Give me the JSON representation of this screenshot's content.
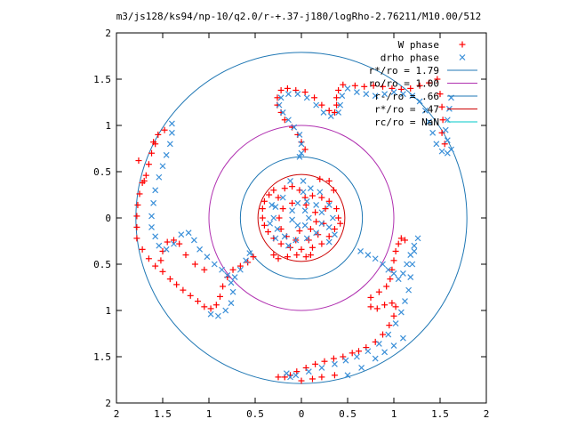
{
  "chart_data": {
    "type": "scatter",
    "title": "m3/js128/ks94/np-10/q2.0/r-+.37-j180/logRho-2.76211/M10.00/512",
    "xlabel": "",
    "ylabel": "",
    "xlim": [
      -2,
      2
    ],
    "ylim": [
      -2,
      2
    ],
    "x_ticks": [
      "2",
      "1.5",
      "1",
      "0.5",
      "0",
      "0.5",
      "1",
      "1.5",
      "2"
    ],
    "y_ticks": [
      "2",
      "1.5",
      "1",
      "0.5",
      "0",
      "0.5",
      "1",
      "1.5",
      "2"
    ],
    "grid": false,
    "legend_placement": "top-right",
    "circles": [
      {
        "name": "r*/ro = 1.79",
        "radius": 1.79,
        "color": "#1f77b4"
      },
      {
        "name": "ro/ro = 1.00",
        "radius": 1.0,
        "color": "#b030b0"
      },
      {
        "name": "r-/ro = .66",
        "radius": 0.66,
        "color": "#1f77b4"
      },
      {
        "name": "r*/ro = .47",
        "radius": 0.47,
        "color": "#cc0000"
      },
      {
        "name": "rc/ro = NaN",
        "radius": null,
        "color": "#00c8c8"
      }
    ],
    "series": [
      {
        "name": "W phase",
        "marker": "+",
        "color": "#ff0000",
        "points": [
          [
            1.47,
            1.5
          ],
          [
            1.38,
            1.46
          ],
          [
            1.28,
            1.43
          ],
          [
            1.18,
            1.4
          ],
          [
            1.08,
            1.39
          ],
          [
            0.98,
            1.4
          ],
          [
            0.88,
            1.42
          ],
          [
            0.78,
            1.43
          ],
          [
            0.68,
            1.42
          ],
          [
            0.58,
            1.43
          ],
          [
            0.45,
            1.44
          ],
          [
            0.4,
            1.38
          ],
          [
            0.38,
            1.3
          ],
          [
            0.38,
            1.22
          ],
          [
            0.36,
            1.14
          ],
          [
            0.3,
            1.16
          ],
          [
            0.22,
            1.22
          ],
          [
            0.14,
            1.3
          ],
          [
            0.04,
            1.36
          ],
          [
            -0.06,
            1.38
          ],
          [
            -0.15,
            1.4
          ],
          [
            -0.22,
            1.38
          ],
          [
            -0.26,
            1.3
          ],
          [
            -0.26,
            1.22
          ],
          [
            -0.22,
            1.14
          ],
          [
            -0.18,
            1.06
          ],
          [
            -0.1,
            0.98
          ],
          [
            -0.04,
            0.9
          ],
          [
            0.0,
            0.82
          ],
          [
            0.04,
            0.74
          ],
          [
            1.5,
            1.34
          ],
          [
            1.52,
            1.2
          ],
          [
            1.53,
            1.06
          ],
          [
            1.52,
            0.92
          ],
          [
            1.55,
            0.8
          ],
          [
            -1.55,
            0.9
          ],
          [
            -1.58,
            0.8
          ],
          [
            -1.62,
            0.7
          ],
          [
            -1.65,
            0.58
          ],
          [
            -1.68,
            0.46
          ],
          [
            -1.72,
            0.38
          ],
          [
            -1.75,
            0.26
          ],
          [
            -1.77,
            0.14
          ],
          [
            -1.78,
            0.02
          ],
          [
            -1.78,
            -0.1
          ],
          [
            -1.78,
            -0.22
          ],
          [
            -1.72,
            -0.34
          ],
          [
            -1.65,
            -0.44
          ],
          [
            -1.58,
            -0.52
          ],
          [
            -1.5,
            -0.58
          ],
          [
            -1.42,
            -0.66
          ],
          [
            -1.35,
            -0.72
          ],
          [
            -1.28,
            -0.78
          ],
          [
            -1.2,
            -0.84
          ],
          [
            -1.12,
            -0.9
          ],
          [
            -1.05,
            -0.96
          ],
          [
            -0.98,
            -0.98
          ],
          [
            -0.92,
            -0.94
          ],
          [
            -0.88,
            -0.85
          ],
          [
            -0.85,
            -0.74
          ],
          [
            -0.8,
            -0.64
          ],
          [
            -0.74,
            -0.56
          ],
          [
            -0.66,
            -0.52
          ],
          [
            -0.58,
            -0.48
          ],
          [
            -0.52,
            -0.42
          ],
          [
            -1.05,
            -0.56
          ],
          [
            -1.15,
            -0.5
          ],
          [
            -1.25,
            -0.4
          ],
          [
            -1.32,
            -0.28
          ],
          [
            -1.38,
            -0.24
          ],
          [
            -1.45,
            -0.26
          ],
          [
            -1.5,
            -0.36
          ],
          [
            -1.52,
            -0.46
          ],
          [
            -1.76,
            0.62
          ],
          [
            -1.6,
            0.82
          ],
          [
            -1.48,
            0.95
          ],
          [
            -1.7,
            0.4
          ],
          [
            0.62,
            -1.44
          ],
          [
            0.55,
            -1.46
          ],
          [
            0.45,
            -1.5
          ],
          [
            0.35,
            -1.52
          ],
          [
            0.25,
            -1.55
          ],
          [
            0.15,
            -1.58
          ],
          [
            0.05,
            -1.62
          ],
          [
            -0.05,
            -1.66
          ],
          [
            -0.12,
            -1.7
          ],
          [
            -0.18,
            -1.72
          ],
          [
            0.7,
            -1.4
          ],
          [
            0.8,
            -1.34
          ],
          [
            0.88,
            -1.26
          ],
          [
            0.95,
            -1.16
          ],
          [
            1.0,
            -1.06
          ],
          [
            1.02,
            -0.96
          ],
          [
            0.98,
            -0.92
          ],
          [
            0.9,
            -0.94
          ],
          [
            0.82,
            -0.98
          ],
          [
            0.75,
            -0.96
          ],
          [
            0.75,
            -0.86
          ],
          [
            0.84,
            -0.8
          ],
          [
            0.92,
            -0.74
          ],
          [
            0.96,
            -0.66
          ],
          [
            0.98,
            -0.56
          ],
          [
            1.0,
            -0.46
          ],
          [
            1.02,
            -0.36
          ],
          [
            1.05,
            -0.28
          ],
          [
            1.08,
            -0.22
          ],
          [
            1.12,
            -0.24
          ],
          [
            0.0,
            -1.76
          ],
          [
            0.12,
            -1.74
          ],
          [
            0.22,
            -1.72
          ],
          [
            0.36,
            -1.7
          ],
          [
            -0.25,
            -1.72
          ],
          [
            -0.3,
            0.3
          ],
          [
            -0.25,
            0.22
          ],
          [
            -0.35,
            0.25
          ],
          [
            -0.4,
            0.18
          ],
          [
            -0.42,
            0.1
          ],
          [
            -0.42,
            0.0
          ],
          [
            -0.4,
            -0.08
          ],
          [
            -0.36,
            -0.15
          ],
          [
            -0.3,
            -0.22
          ],
          [
            -0.22,
            -0.28
          ],
          [
            -0.12,
            -0.32
          ],
          [
            0.0,
            -0.34
          ],
          [
            0.12,
            -0.32
          ],
          [
            0.22,
            -0.28
          ],
          [
            0.3,
            -0.2
          ],
          [
            0.36,
            -0.12
          ],
          [
            0.4,
            0.0
          ],
          [
            0.38,
            0.1
          ],
          [
            0.3,
            0.18
          ],
          [
            0.22,
            0.22
          ],
          [
            0.12,
            0.24
          ],
          [
            0.04,
            0.22
          ],
          [
            -0.02,
            0.3
          ],
          [
            -0.1,
            0.34
          ],
          [
            -0.18,
            0.32
          ],
          [
            0.26,
            0.1
          ],
          [
            0.24,
            -0.06
          ],
          [
            0.18,
            -0.18
          ],
          [
            0.08,
            -0.24
          ],
          [
            -0.06,
            -0.24
          ],
          [
            -0.16,
            -0.2
          ],
          [
            -0.22,
            -0.12
          ],
          [
            -0.24,
            0.0
          ],
          [
            -0.2,
            0.1
          ],
          [
            -0.1,
            0.16
          ],
          [
            0.05,
            0.14
          ],
          [
            0.15,
            0.06
          ],
          [
            0.16,
            -0.04
          ],
          [
            0.1,
            -0.12
          ],
          [
            -0.02,
            -0.14
          ],
          [
            -0.3,
            -0.4
          ],
          [
            -0.25,
            -0.44
          ],
          [
            -0.15,
            -0.42
          ],
          [
            -0.05,
            -0.4
          ],
          [
            0.05,
            -0.42
          ],
          [
            0.1,
            -0.4
          ],
          [
            0.3,
            0.4
          ],
          [
            0.2,
            0.42
          ],
          [
            0.35,
            0.3
          ],
          [
            0.42,
            -0.06
          ]
        ]
      },
      {
        "name": "drho phase",
        "marker": "x",
        "color": "#3a8fd8",
        "points": [
          [
            1.62,
            1.3
          ],
          [
            1.6,
            1.18
          ],
          [
            1.58,
            1.06
          ],
          [
            1.56,
            0.95
          ],
          [
            1.58,
            0.84
          ],
          [
            1.62,
            0.74
          ],
          [
            1.58,
            0.7
          ],
          [
            1.52,
            0.72
          ],
          [
            1.46,
            0.8
          ],
          [
            1.42,
            0.92
          ],
          [
            1.38,
            1.04
          ],
          [
            1.34,
            1.16
          ],
          [
            1.28,
            1.26
          ],
          [
            1.2,
            1.32
          ],
          [
            1.1,
            1.34
          ],
          [
            1.0,
            1.36
          ],
          [
            0.9,
            1.34
          ],
          [
            0.8,
            1.32
          ],
          [
            0.7,
            1.34
          ],
          [
            0.6,
            1.36
          ],
          [
            0.5,
            1.4
          ],
          [
            0.44,
            1.32
          ],
          [
            0.42,
            1.22
          ],
          [
            0.4,
            1.14
          ],
          [
            0.32,
            1.1
          ],
          [
            0.24,
            1.14
          ],
          [
            0.16,
            1.22
          ],
          [
            0.06,
            1.3
          ],
          [
            -0.04,
            1.34
          ],
          [
            -0.14,
            1.34
          ],
          [
            -0.22,
            1.3
          ],
          [
            -0.24,
            1.22
          ],
          [
            -0.2,
            1.14
          ],
          [
            -0.14,
            1.06
          ],
          [
            -0.08,
            0.98
          ],
          [
            -0.02,
            0.9
          ],
          [
            0.0,
            0.8
          ],
          [
            0.0,
            0.7
          ],
          [
            -0.02,
            0.66
          ],
          [
            -1.4,
            1.02
          ],
          [
            -1.4,
            0.92
          ],
          [
            -1.42,
            0.8
          ],
          [
            -1.46,
            0.68
          ],
          [
            -1.5,
            0.56
          ],
          [
            -1.54,
            0.44
          ],
          [
            -1.58,
            0.3
          ],
          [
            -1.6,
            0.16
          ],
          [
            -1.62,
            0.02
          ],
          [
            -1.62,
            -0.1
          ],
          [
            -1.58,
            -0.2
          ],
          [
            -1.54,
            -0.3
          ],
          [
            -1.46,
            -0.34
          ],
          [
            -1.38,
            -0.28
          ],
          [
            -1.3,
            -0.18
          ],
          [
            -1.22,
            -0.16
          ],
          [
            -1.16,
            -0.24
          ],
          [
            -1.1,
            -0.34
          ],
          [
            -1.02,
            -0.42
          ],
          [
            -0.94,
            -0.5
          ],
          [
            -0.86,
            -0.56
          ],
          [
            -0.8,
            -0.62
          ],
          [
            -0.76,
            -0.7
          ],
          [
            -0.74,
            -0.8
          ],
          [
            -0.76,
            -0.92
          ],
          [
            -0.82,
            -1.0
          ],
          [
            -0.9,
            -1.06
          ],
          [
            -0.98,
            -1.04
          ],
          [
            -0.72,
            -0.64
          ],
          [
            -0.66,
            -0.56
          ],
          [
            -0.6,
            -0.46
          ],
          [
            -0.56,
            -0.38
          ],
          [
            0.64,
            -0.36
          ],
          [
            0.72,
            -0.4
          ],
          [
            0.8,
            -0.44
          ],
          [
            0.88,
            -0.5
          ],
          [
            0.94,
            -0.56
          ],
          [
            1.0,
            -0.6
          ],
          [
            1.05,
            -0.66
          ],
          [
            1.1,
            -0.6
          ],
          [
            1.14,
            -0.5
          ],
          [
            1.18,
            -0.4
          ],
          [
            1.22,
            -0.3
          ],
          [
            1.26,
            -0.22
          ],
          [
            1.22,
            -0.36
          ],
          [
            1.2,
            -0.5
          ],
          [
            1.18,
            -0.64
          ],
          [
            1.16,
            -0.78
          ],
          [
            1.12,
            -0.9
          ],
          [
            1.08,
            -1.02
          ],
          [
            1.02,
            -1.14
          ],
          [
            0.94,
            -1.26
          ],
          [
            0.84,
            -1.36
          ],
          [
            0.72,
            -1.44
          ],
          [
            0.6,
            -1.5
          ],
          [
            0.48,
            -1.54
          ],
          [
            0.36,
            -1.58
          ],
          [
            0.22,
            -1.62
          ],
          [
            0.08,
            -1.66
          ],
          [
            -0.06,
            -1.7
          ],
          [
            -0.12,
            -1.72
          ],
          [
            -0.16,
            -1.68
          ],
          [
            0.5,
            -1.7
          ],
          [
            0.65,
            -1.62
          ],
          [
            0.8,
            -1.52
          ],
          [
            0.9,
            -1.45
          ],
          [
            1.0,
            -1.38
          ],
          [
            1.1,
            -1.3
          ],
          [
            -0.2,
            0.22
          ],
          [
            -0.28,
            0.12
          ],
          [
            -0.3,
            0.0
          ],
          [
            -0.26,
            -0.12
          ],
          [
            -0.18,
            -0.2
          ],
          [
            -0.06,
            -0.24
          ],
          [
            0.06,
            -0.22
          ],
          [
            0.16,
            -0.16
          ],
          [
            0.22,
            -0.06
          ],
          [
            0.22,
            0.06
          ],
          [
            0.16,
            0.14
          ],
          [
            0.06,
            0.18
          ],
          [
            -0.04,
            0.16
          ],
          [
            -0.1,
            0.08
          ],
          [
            -0.1,
            -0.02
          ],
          [
            -0.04,
            -0.08
          ],
          [
            0.04,
            -0.08
          ],
          [
            0.08,
            0.0
          ],
          [
            0.04,
            0.08
          ],
          [
            0.02,
            0.28
          ],
          [
            0.1,
            0.32
          ],
          [
            0.2,
            0.28
          ],
          [
            0.3,
            0.14
          ],
          [
            0.34,
            0.0
          ],
          [
            0.3,
            -0.1
          ],
          [
            -0.32,
            0.14
          ],
          [
            -0.34,
            -0.06
          ],
          [
            -0.28,
            -0.22
          ],
          [
            -0.14,
            -0.3
          ],
          [
            0.02,
            0.4
          ],
          [
            -0.12,
            0.4
          ],
          [
            0.3,
            -0.26
          ],
          [
            0.36,
            -0.18
          ]
        ]
      }
    ]
  }
}
